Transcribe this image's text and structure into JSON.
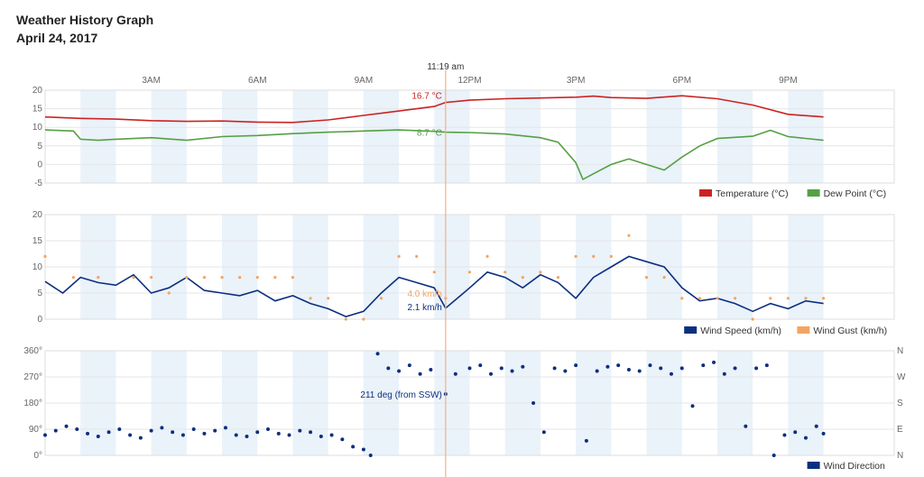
{
  "page": {
    "title": "Weather History Graph",
    "date": "April 24, 2017"
  },
  "cursor": {
    "time_label": "11:19 am",
    "hour": 11.32
  },
  "colors": {
    "temperature": "#cc2222",
    "dew_point": "#55a044",
    "wind_speed": "#0b2f7f",
    "wind_gust": "#f4a460",
    "wind_direction": "#0b2f7f",
    "cursor": "#f4b183",
    "band": "#eaf2fa",
    "grid": "#e6e6e6"
  },
  "chart_data": [
    {
      "type": "line",
      "x_ticks": [
        "3AM",
        "6AM",
        "9AM",
        "12PM",
        "3PM",
        "6PM",
        "9PM"
      ],
      "y_ticks": [
        "20",
        "15",
        "10",
        "5",
        "0",
        "-5"
      ],
      "ylim": [
        -5,
        20
      ],
      "legend_position": "bottom-right",
      "annotations": [
        "16.7 °C",
        "8.7 °C"
      ],
      "series": [
        {
          "name": "Temperature (°C)",
          "color": "#cc2222",
          "points": [
            [
              0,
              12.8
            ],
            [
              1,
              12.4
            ],
            [
              2,
              12.2
            ],
            [
              3,
              11.8
            ],
            [
              4,
              11.6
            ],
            [
              5,
              11.7
            ],
            [
              6,
              11.4
            ],
            [
              7,
              11.3
            ],
            [
              8,
              12.0
            ],
            [
              9,
              13.2
            ],
            [
              10,
              14.4
            ],
            [
              11,
              15.6
            ],
            [
              11.32,
              16.7
            ],
            [
              12,
              17.3
            ],
            [
              13,
              17.7
            ],
            [
              14,
              17.9
            ],
            [
              15,
              18.1
            ],
            [
              15.5,
              18.4
            ],
            [
              16,
              18.0
            ],
            [
              17,
              17.8
            ],
            [
              18,
              18.5
            ],
            [
              19,
              17.7
            ],
            [
              20,
              16.0
            ],
            [
              21,
              13.5
            ],
            [
              22,
              12.8
            ]
          ]
        },
        {
          "name": "Dew Point (°C)",
          "color": "#55a044",
          "points": [
            [
              0,
              9.3
            ],
            [
              0.8,
              9.0
            ],
            [
              1,
              6.8
            ],
            [
              1.5,
              6.5
            ],
            [
              2,
              6.8
            ],
            [
              3,
              7.2
            ],
            [
              4,
              6.5
            ],
            [
              5,
              7.5
            ],
            [
              6,
              7.8
            ],
            [
              7,
              8.3
            ],
            [
              8,
              8.7
            ],
            [
              9,
              9.0
            ],
            [
              10,
              9.3
            ],
            [
              11,
              8.9
            ],
            [
              11.32,
              8.7
            ],
            [
              12,
              8.6
            ],
            [
              13,
              8.2
            ],
            [
              14,
              7.2
            ],
            [
              14.5,
              6.0
            ],
            [
              15,
              0.5
            ],
            [
              15.2,
              -4.0
            ],
            [
              15.5,
              -2.5
            ],
            [
              16,
              0.0
            ],
            [
              16.5,
              1.5
            ],
            [
              17,
              0.0
            ],
            [
              17.5,
              -1.5
            ],
            [
              18,
              2.0
            ],
            [
              18.5,
              5.0
            ],
            [
              19,
              7.0
            ],
            [
              20,
              7.6
            ],
            [
              20.5,
              9.2
            ],
            [
              21,
              7.5
            ],
            [
              22,
              6.5
            ]
          ]
        }
      ]
    },
    {
      "type": "line",
      "y_ticks": [
        "20",
        "15",
        "10",
        "5",
        "0"
      ],
      "ylim": [
        0,
        20
      ],
      "legend_position": "bottom-right",
      "annotations": [
        "4.0 km/h",
        "2.1 km/h"
      ],
      "series": [
        {
          "name": "Wind Speed (km/h)",
          "color": "#0b2f7f",
          "points": [
            [
              0,
              7.2
            ],
            [
              0.5,
              5.0
            ],
            [
              1,
              8.0
            ],
            [
              1.5,
              7.0
            ],
            [
              2,
              6.5
            ],
            [
              2.5,
              8.5
            ],
            [
              3,
              5.0
            ],
            [
              3.5,
              6.0
            ],
            [
              4,
              8.0
            ],
            [
              4.5,
              5.5
            ],
            [
              5,
              5.0
            ],
            [
              5.5,
              4.5
            ],
            [
              6,
              5.5
            ],
            [
              6.5,
              3.5
            ],
            [
              7,
              4.5
            ],
            [
              7.5,
              3.0
            ],
            [
              8,
              2.0
            ],
            [
              8.5,
              0.5
            ],
            [
              9,
              1.5
            ],
            [
              9.5,
              5.0
            ],
            [
              10,
              8.0
            ],
            [
              10.5,
              7.0
            ],
            [
              11,
              6.0
            ],
            [
              11.32,
              2.1
            ],
            [
              12,
              6.0
            ],
            [
              12.5,
              9.0
            ],
            [
              13,
              8.0
            ],
            [
              13.5,
              6.0
            ],
            [
              14,
              8.5
            ],
            [
              14.5,
              7.0
            ],
            [
              15,
              4.0
            ],
            [
              15.5,
              8.0
            ],
            [
              16,
              10.0
            ],
            [
              16.5,
              12.0
            ],
            [
              17,
              11.0
            ],
            [
              17.5,
              10.0
            ],
            [
              18,
              6.0
            ],
            [
              18.5,
              3.5
            ],
            [
              19,
              4.0
            ],
            [
              19.5,
              3.0
            ],
            [
              20,
              1.5
            ],
            [
              20.5,
              3.0
            ],
            [
              21,
              2.0
            ],
            [
              21.5,
              3.5
            ],
            [
              22,
              3.0
            ]
          ]
        },
        {
          "name": "Wind Gust (km/h)",
          "color": "#f4a460",
          "points": [
            [
              0,
              12
            ],
            [
              0.8,
              8
            ],
            [
              1.5,
              8
            ],
            [
              2.5,
              8
            ],
            [
              3,
              8
            ],
            [
              3.5,
              5
            ],
            [
              4,
              8
            ],
            [
              4.5,
              8
            ],
            [
              5,
              8
            ],
            [
              5.5,
              8
            ],
            [
              6,
              8
            ],
            [
              6.5,
              8
            ],
            [
              7,
              8
            ],
            [
              7.5,
              4
            ],
            [
              8,
              4
            ],
            [
              8.5,
              0
            ],
            [
              9,
              0
            ],
            [
              9.5,
              4
            ],
            [
              10,
              12
            ],
            [
              10.5,
              12
            ],
            [
              11,
              9
            ],
            [
              11.32,
              4.0
            ],
            [
              12,
              9
            ],
            [
              12.5,
              12
            ],
            [
              13,
              9
            ],
            [
              13.5,
              8
            ],
            [
              14,
              9
            ],
            [
              14.5,
              8
            ],
            [
              15,
              12
            ],
            [
              15.5,
              12
            ],
            [
              16,
              12
            ],
            [
              16.5,
              16
            ],
            [
              17,
              8
            ],
            [
              17.5,
              8
            ],
            [
              18,
              4
            ],
            [
              18.5,
              4
            ],
            [
              19,
              4
            ],
            [
              19.5,
              4
            ],
            [
              20,
              0
            ],
            [
              20.5,
              4
            ],
            [
              21,
              4
            ],
            [
              21.5,
              4
            ],
            [
              22,
              4
            ]
          ]
        }
      ]
    },
    {
      "type": "scatter",
      "y_ticks": [
        "360°",
        "270°",
        "180°",
        "90°",
        "0°"
      ],
      "y_ticks_right": [
        "N",
        "W",
        "S",
        "E",
        "N"
      ],
      "ylim": [
        0,
        360
      ],
      "legend_position": "bottom-right",
      "annotations": [
        "211 deg (from SSW)"
      ],
      "series": [
        {
          "name": "Wind Direction",
          "color": "#0b2f7f",
          "points": [
            [
              0,
              70
            ],
            [
              0.3,
              85
            ],
            [
              0.6,
              100
            ],
            [
              0.9,
              90
            ],
            [
              1.2,
              75
            ],
            [
              1.5,
              65
            ],
            [
              1.8,
              80
            ],
            [
              2.1,
              90
            ],
            [
              2.4,
              70
            ],
            [
              2.7,
              60
            ],
            [
              3.0,
              85
            ],
            [
              3.3,
              95
            ],
            [
              3.6,
              80
            ],
            [
              3.9,
              70
            ],
            [
              4.2,
              90
            ],
            [
              4.5,
              75
            ],
            [
              4.8,
              85
            ],
            [
              5.1,
              95
            ],
            [
              5.4,
              70
            ],
            [
              5.7,
              65
            ],
            [
              6.0,
              80
            ],
            [
              6.3,
              90
            ],
            [
              6.6,
              75
            ],
            [
              6.9,
              70
            ],
            [
              7.2,
              85
            ],
            [
              7.5,
              80
            ],
            [
              7.8,
              65
            ],
            [
              8.1,
              70
            ],
            [
              8.4,
              55
            ],
            [
              8.7,
              30
            ],
            [
              9.0,
              20
            ],
            [
              9.2,
              0
            ],
            [
              9.4,
              350
            ],
            [
              9.7,
              300
            ],
            [
              10.0,
              290
            ],
            [
              10.3,
              310
            ],
            [
              10.6,
              280
            ],
            [
              10.9,
              295
            ],
            [
              11.32,
              211
            ],
            [
              11.6,
              280
            ],
            [
              12.0,
              300
            ],
            [
              12.3,
              310
            ],
            [
              12.6,
              280
            ],
            [
              12.9,
              300
            ],
            [
              13.2,
              290
            ],
            [
              13.5,
              305
            ],
            [
              13.8,
              180
            ],
            [
              14.1,
              80
            ],
            [
              14.4,
              300
            ],
            [
              14.7,
              290
            ],
            [
              15.0,
              310
            ],
            [
              15.3,
              50
            ],
            [
              15.6,
              290
            ],
            [
              15.9,
              305
            ],
            [
              16.2,
              310
            ],
            [
              16.5,
              295
            ],
            [
              16.8,
              290
            ],
            [
              17.1,
              310
            ],
            [
              17.4,
              300
            ],
            [
              17.7,
              280
            ],
            [
              18.0,
              300
            ],
            [
              18.3,
              170
            ],
            [
              18.6,
              310
            ],
            [
              18.9,
              320
            ],
            [
              19.2,
              280
            ],
            [
              19.5,
              300
            ],
            [
              19.8,
              100
            ],
            [
              20.1,
              300
            ],
            [
              20.4,
              310
            ],
            [
              20.6,
              0
            ],
            [
              20.9,
              70
            ],
            [
              21.2,
              80
            ],
            [
              21.5,
              60
            ],
            [
              21.8,
              100
            ],
            [
              22,
              75
            ]
          ]
        }
      ]
    }
  ]
}
